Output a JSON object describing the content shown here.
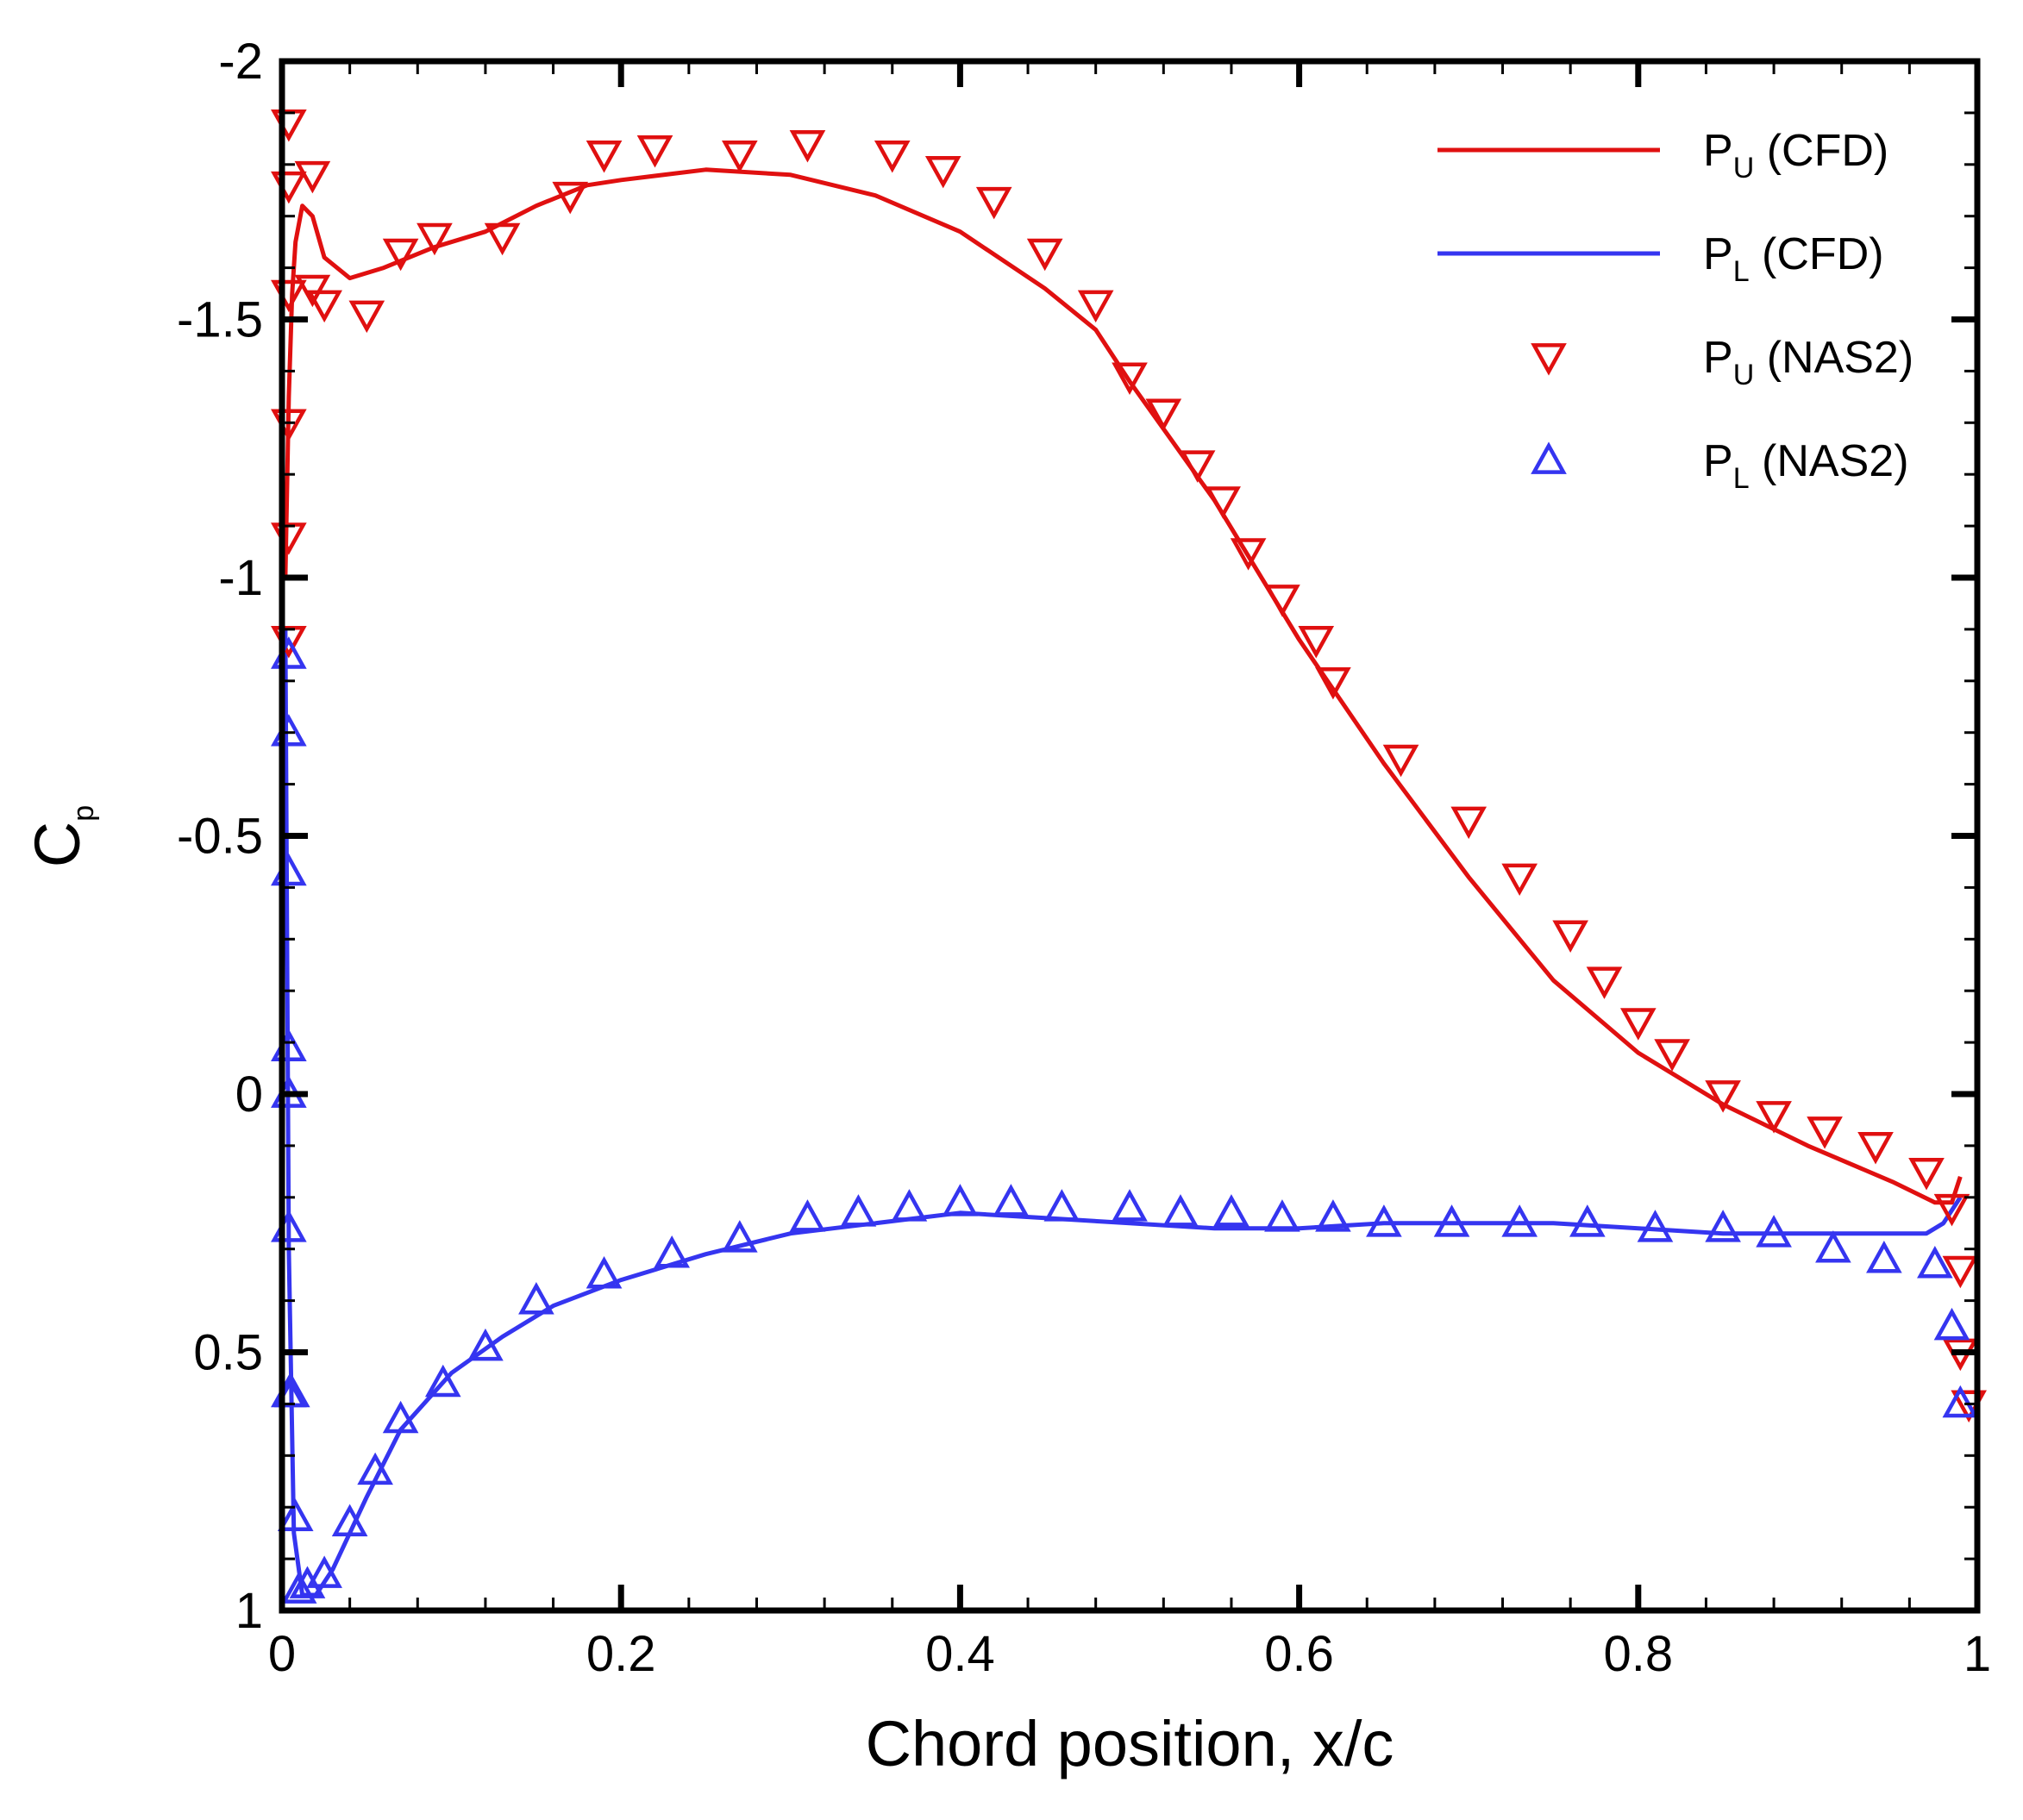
{
  "chart_data": {
    "type": "line",
    "title": "",
    "xlabel": "Chord position, x/c",
    "ylabel": {
      "main": "C",
      "sub": "p"
    },
    "xlim": [
      0,
      1
    ],
    "ylim": [
      -2,
      1
    ],
    "y_inverted": true,
    "x_ticks": [
      0,
      0.2,
      0.4,
      0.6,
      0.8,
      1
    ],
    "x_tick_labels": [
      "0",
      "0.2",
      "0.4",
      "0.6",
      "0.8",
      "1"
    ],
    "y_ticks": [
      -2,
      -1.5,
      -1,
      -0.5,
      0,
      0.5,
      1
    ],
    "y_tick_labels": [
      "-2",
      "-1.5",
      "-1",
      "-0.5",
      "0",
      "0.5",
      "1"
    ],
    "legend_position": "top-right",
    "series": [
      {
        "name": "P_U (CFD)",
        "label_main": "P",
        "label_sub": "U",
        "label_rest": " (CFD)",
        "kind": "line",
        "color": "#e01010",
        "x": [
          0.002,
          0.004,
          0.006,
          0.008,
          0.012,
          0.018,
          0.025,
          0.04,
          0.06,
          0.09,
          0.12,
          0.15,
          0.18,
          0.2,
          0.25,
          0.3,
          0.35,
          0.4,
          0.45,
          0.48,
          0.5,
          0.55,
          0.6,
          0.65,
          0.7,
          0.75,
          0.8,
          0.85,
          0.9,
          0.95,
          0.975,
          0.985,
          0.99
        ],
        "y": [
          -1.0,
          -1.35,
          -1.55,
          -1.65,
          -1.72,
          -1.7,
          -1.62,
          -1.58,
          -1.6,
          -1.64,
          -1.67,
          -1.72,
          -1.76,
          -1.77,
          -1.79,
          -1.78,
          -1.74,
          -1.67,
          -1.56,
          -1.48,
          -1.38,
          -1.15,
          -0.88,
          -0.64,
          -0.42,
          -0.22,
          -0.08,
          0.02,
          0.1,
          0.17,
          0.21,
          0.21,
          0.16
        ]
      },
      {
        "name": "P_L (CFD)",
        "label_main": "P",
        "label_sub": "L",
        "label_rest": " (CFD)",
        "kind": "line",
        "color": "#3535f0",
        "x": [
          0.002,
          0.004,
          0.007,
          0.012,
          0.02,
          0.03,
          0.05,
          0.07,
          0.1,
          0.13,
          0.16,
          0.2,
          0.25,
          0.3,
          0.35,
          0.4,
          0.45,
          0.5,
          0.55,
          0.6,
          0.65,
          0.7,
          0.75,
          0.8,
          0.85,
          0.9,
          0.95,
          0.97,
          0.98,
          0.99
        ],
        "y": [
          -0.9,
          0.3,
          0.85,
          0.97,
          0.97,
          0.92,
          0.78,
          0.65,
          0.54,
          0.47,
          0.41,
          0.36,
          0.31,
          0.27,
          0.25,
          0.23,
          0.24,
          0.25,
          0.26,
          0.26,
          0.25,
          0.25,
          0.25,
          0.26,
          0.27,
          0.27,
          0.27,
          0.27,
          0.25,
          0.2
        ]
      },
      {
        "name": "P_U (NAS2)",
        "label_main": "P",
        "label_sub": "U",
        "label_rest": " (NAS2)",
        "kind": "marker",
        "marker": "triangle-down",
        "color": "#e01010",
        "x": [
          0.004,
          0.004,
          0.004,
          0.004,
          0.004,
          0.004,
          0.018,
          0.018,
          0.025,
          0.05,
          0.07,
          0.09,
          0.13,
          0.17,
          0.19,
          0.22,
          0.27,
          0.31,
          0.36,
          0.39,
          0.42,
          0.45,
          0.48,
          0.5,
          0.52,
          0.54,
          0.555,
          0.57,
          0.59,
          0.61,
          0.62,
          0.66,
          0.7,
          0.73,
          0.76,
          0.78,
          0.8,
          0.82,
          0.85,
          0.88,
          0.91,
          0.94,
          0.97,
          0.985,
          0.99,
          0.99,
          0.995
        ],
        "y": [
          -1.88,
          -1.76,
          -1.55,
          -1.3,
          -1.08,
          -0.88,
          -1.78,
          -1.56,
          -1.53,
          -1.51,
          -1.63,
          -1.66,
          -1.66,
          -1.74,
          -1.82,
          -1.83,
          -1.82,
          -1.84,
          -1.82,
          -1.79,
          -1.73,
          -1.63,
          -1.53,
          -1.39,
          -1.32,
          -1.22,
          -1.15,
          -1.05,
          -0.96,
          -0.88,
          -0.8,
          -0.65,
          -0.53,
          -0.42,
          -0.31,
          -0.22,
          -0.14,
          -0.08,
          0.0,
          0.04,
          0.07,
          0.1,
          0.15,
          0.22,
          0.34,
          0.5,
          0.6
        ]
      },
      {
        "name": "P_L (NAS2)",
        "label_main": "P",
        "label_sub": "L",
        "label_rest": " (NAS2)",
        "kind": "marker",
        "marker": "triangle-up",
        "color": "#3535f0",
        "x": [
          0.004,
          0.004,
          0.004,
          0.004,
          0.004,
          0.004,
          0.004,
          0.006,
          0.008,
          0.01,
          0.015,
          0.025,
          0.04,
          0.055,
          0.07,
          0.095,
          0.12,
          0.15,
          0.19,
          0.23,
          0.27,
          0.31,
          0.34,
          0.37,
          0.4,
          0.43,
          0.46,
          0.5,
          0.53,
          0.56,
          0.59,
          0.62,
          0.65,
          0.69,
          0.73,
          0.77,
          0.81,
          0.85,
          0.88,
          0.915,
          0.945,
          0.975,
          0.985,
          0.99
        ],
        "y": [
          -0.85,
          -0.7,
          -0.43,
          -0.09,
          0.0,
          0.26,
          0.58,
          0.58,
          0.82,
          0.96,
          0.95,
          0.93,
          0.83,
          0.73,
          0.63,
          0.56,
          0.49,
          0.4,
          0.35,
          0.31,
          0.28,
          0.24,
          0.23,
          0.22,
          0.21,
          0.21,
          0.22,
          0.22,
          0.23,
          0.23,
          0.24,
          0.24,
          0.25,
          0.25,
          0.25,
          0.25,
          0.26,
          0.26,
          0.27,
          0.3,
          0.32,
          0.33,
          0.45,
          0.6
        ]
      }
    ]
  }
}
